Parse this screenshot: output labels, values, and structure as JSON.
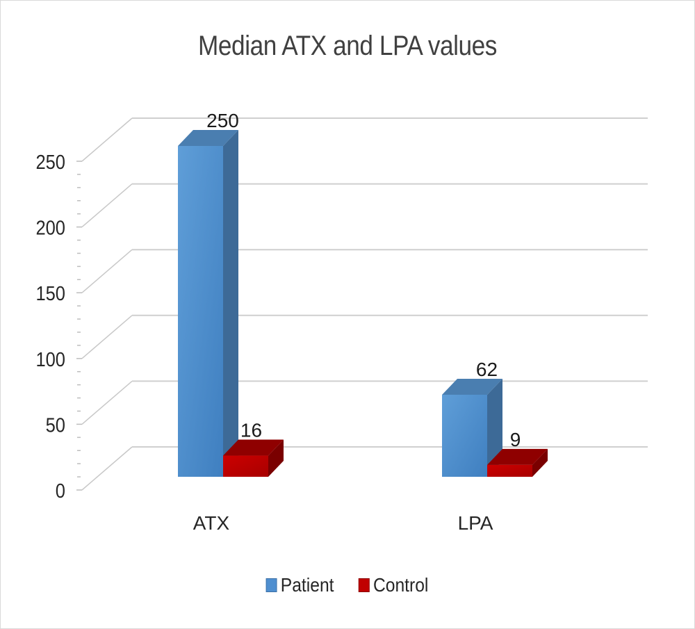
{
  "chart_data": {
    "type": "bar",
    "style": "3d-clustered-column",
    "title": "Median ATX and LPA values",
    "xlabel": "",
    "ylabel": "",
    "categories": [
      "ATX",
      "LPA"
    ],
    "series": [
      {
        "name": "Patient",
        "values": [
          250,
          62
        ],
        "color": "#4f8fd0"
      },
      {
        "name": "Control",
        "values": [
          16,
          9
        ],
        "color": "#c00000"
      }
    ],
    "data_labels": [
      [
        "250",
        "62"
      ],
      [
        "16",
        "9"
      ]
    ],
    "ylim": [
      0,
      250
    ],
    "yticks": [
      "0",
      "50",
      "100",
      "150",
      "200",
      "250"
    ],
    "minor_tick_step": 10,
    "grid": true,
    "legend_position": "bottom"
  },
  "legend": {
    "items": [
      {
        "label": "Patient",
        "color": "#4f8fd0"
      },
      {
        "label": "Control",
        "color": "#c00000"
      }
    ]
  }
}
